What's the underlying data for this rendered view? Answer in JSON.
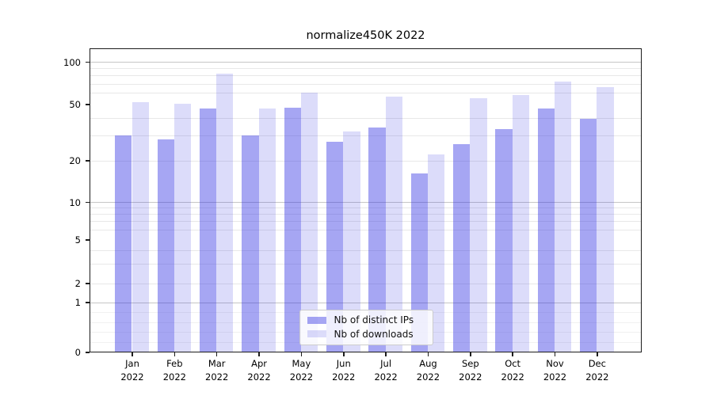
{
  "figure": {
    "title": "normalize450K 2022"
  },
  "chart_data": {
    "type": "bar",
    "title": "normalize450K 2022",
    "categories": [
      "Jan 2022",
      "Feb 2022",
      "Mar 2022",
      "Apr 2022",
      "May 2022",
      "Jun 2022",
      "Jul 2022",
      "Aug 2022",
      "Sep 2022",
      "Oct 2022",
      "Nov 2022",
      "Dec 2022"
    ],
    "months": [
      "Jan",
      "Feb",
      "Mar",
      "Apr",
      "May",
      "Jun",
      "Jul",
      "Aug",
      "Sep",
      "Oct",
      "Nov",
      "Dec"
    ],
    "year_label": "2022",
    "series": [
      {
        "name": "Nb of distinct IPs",
        "color": "#a5a5f1",
        "color_rgba": "rgba(43,43,226,0.42)",
        "values": [
          30,
          28,
          46,
          30,
          47,
          27,
          34,
          16,
          26,
          33,
          46,
          39
        ]
      },
      {
        "name": "Nb of downloads",
        "color": "#d9d9f8",
        "color_rgba": "rgba(43,43,226,0.165)",
        "values": [
          51,
          50,
          82,
          46,
          60,
          32,
          56,
          22,
          55,
          58,
          72,
          66
        ]
      }
    ],
    "yticks": [
      0,
      1,
      2,
      5,
      10,
      20,
      50,
      100
    ],
    "yscale": "symlog",
    "ylim": [
      0,
      125
    ],
    "xlabel": "",
    "ylabel": "",
    "grid": "horizontal",
    "legend_position": "lower center",
    "colors": {
      "grid_major": "#c6c6c6",
      "grid_minor": "#e8e8e8",
      "axis": "#1c1c1c",
      "background": "#ffffff"
    }
  }
}
